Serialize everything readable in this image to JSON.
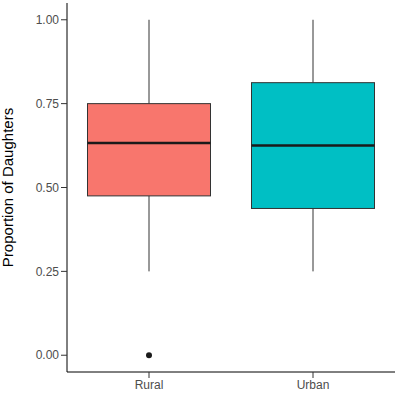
{
  "chart_data": {
    "type": "box",
    "y_label": "Proportion of Daughters",
    "categories": [
      "Rural",
      "Urban"
    ],
    "colors": [
      "#f8766d",
      "#00bfc4"
    ],
    "min": [
      0.25,
      0.25
    ],
    "q1": [
      0.475,
      0.4375
    ],
    "median": [
      0.633,
      0.625
    ],
    "q3": [
      0.75,
      0.8125
    ],
    "max": [
      1,
      1
    ],
    "outliers": [
      [
        0
      ],
      []
    ],
    "ylim": [
      -0.05,
      1.05
    ],
    "yticks": [
      {
        "value": 0,
        "label": "0.00"
      },
      {
        "value": 0.25,
        "label": "0.25"
      },
      {
        "value": 0.5,
        "label": "0.50"
      },
      {
        "value": 0.75,
        "label": "0.75"
      },
      {
        "value": 1,
        "label": "1.00"
      }
    ]
  }
}
